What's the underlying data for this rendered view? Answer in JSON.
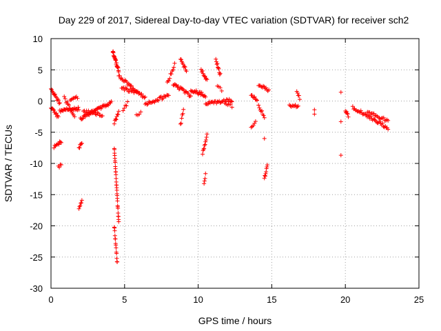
{
  "chart_data": {
    "type": "scatter",
    "title": "Day 229 of 2017, Sidereal Day-to-day VTEC variation (SDTVAR) for receiver sch2",
    "xlabel": "GPS time / hours",
    "ylabel": "SDTVAR / TECUs",
    "xlim": [
      0,
      25
    ],
    "ylim": [
      -30,
      10
    ],
    "xticks": [
      0,
      5,
      10,
      15,
      20,
      25
    ],
    "yticks": [
      -30,
      -25,
      -20,
      -15,
      -10,
      -5,
      0,
      5,
      10
    ],
    "grid": true,
    "marker": "+",
    "color": "#ff0000",
    "series": [
      {
        "name": "SDTVAR",
        "segments": [
          {
            "x0": 0.0,
            "x1": 0.6,
            "y0": 2.2,
            "y1": -0.5,
            "n": 14
          },
          {
            "x0": 0.0,
            "x1": 0.5,
            "y0": -1.0,
            "y1": -2.6,
            "n": 12
          },
          {
            "x0": 0.2,
            "x1": 0.7,
            "y0": -7.3,
            "y1": -6.5,
            "n": 10
          },
          {
            "x0": 0.5,
            "x1": 0.7,
            "y0": -10.6,
            "y1": -10.3,
            "n": 4
          },
          {
            "x0": 0.6,
            "x1": 1.9,
            "y0": -1.5,
            "y1": -1.2,
            "n": 26
          },
          {
            "x0": 0.9,
            "x1": 1.6,
            "y0": 0.5,
            "y1": -2.5,
            "n": 12
          },
          {
            "x0": 1.3,
            "x1": 1.8,
            "y0": 0.2,
            "y1": 0.6,
            "n": 8
          },
          {
            "x0": 1.9,
            "x1": 2.1,
            "y0": -7.5,
            "y1": -6.6,
            "n": 6
          },
          {
            "x0": 1.9,
            "x1": 2.1,
            "y0": -17.2,
            "y1": -16.0,
            "n": 6
          },
          {
            "x0": 2.0,
            "x1": 4.1,
            "y0": -2.8,
            "y1": -0.2,
            "n": 40
          },
          {
            "x0": 2.2,
            "x1": 3.5,
            "y0": -1.6,
            "y1": -2.2,
            "n": 20
          },
          {
            "x0": 4.2,
            "x1": 4.6,
            "y0": 7.9,
            "y1": 4.8,
            "n": 22
          },
          {
            "x0": 4.3,
            "x1": 4.6,
            "y0": -7.4,
            "y1": -19.5,
            "n": 30
          },
          {
            "x0": 4.3,
            "x1": 4.5,
            "y0": -20.0,
            "y1": -26.0,
            "n": 14
          },
          {
            "x0": 4.3,
            "x1": 4.6,
            "y0": -3.6,
            "y1": -1.8,
            "n": 8
          },
          {
            "x0": 4.6,
            "x1": 6.4,
            "y0": 4.0,
            "y1": 0.5,
            "n": 30
          },
          {
            "x0": 4.8,
            "x1": 5.9,
            "y0": 2.0,
            "y1": 1.4,
            "n": 18
          },
          {
            "x0": 4.9,
            "x1": 5.2,
            "y0": -1.5,
            "y1": -0.3,
            "n": 5
          },
          {
            "x0": 5.8,
            "x1": 6.1,
            "y0": -2.3,
            "y1": -1.8,
            "n": 4
          },
          {
            "x0": 6.4,
            "x1": 8.0,
            "y0": -0.5,
            "y1": 0.9,
            "n": 26
          },
          {
            "x0": 7.9,
            "x1": 8.4,
            "y0": 2.8,
            "y1": 5.8,
            "n": 10
          },
          {
            "x0": 8.3,
            "x1": 9.5,
            "y0": 2.8,
            "y1": 0.8,
            "n": 22
          },
          {
            "x0": 8.8,
            "x1": 9.2,
            "y0": 6.8,
            "y1": 4.8,
            "n": 10
          },
          {
            "x0": 8.8,
            "x1": 9.0,
            "y0": -3.8,
            "y1": -1.5,
            "n": 6
          },
          {
            "x0": 9.5,
            "x1": 10.5,
            "y0": 1.8,
            "y1": 0.9,
            "n": 20
          },
          {
            "x0": 10.2,
            "x1": 10.6,
            "y0": 5.0,
            "y1": 3.2,
            "n": 10
          },
          {
            "x0": 10.3,
            "x1": 10.6,
            "y0": -8.5,
            "y1": -5.5,
            "n": 10
          },
          {
            "x0": 10.4,
            "x1": 10.5,
            "y0": -13.2,
            "y1": -11.8,
            "n": 4
          },
          {
            "x0": 10.5,
            "x1": 12.3,
            "y0": -0.3,
            "y1": 0.1,
            "n": 30
          },
          {
            "x0": 11.2,
            "x1": 11.5,
            "y0": 6.6,
            "y1": 4.2,
            "n": 10
          },
          {
            "x0": 11.3,
            "x1": 11.6,
            "y0": 2.6,
            "y1": 1.8,
            "n": 4
          },
          {
            "x0": 11.8,
            "x1": 12.3,
            "y0": -0.5,
            "y1": -0.8,
            "n": 6
          },
          {
            "x0": 13.6,
            "x1": 14.0,
            "y0": 1.0,
            "y1": 0.3,
            "n": 8
          },
          {
            "x0": 13.6,
            "x1": 13.9,
            "y0": -4.2,
            "y1": -3.5,
            "n": 5
          },
          {
            "x0": 14.1,
            "x1": 14.8,
            "y0": 2.7,
            "y1": 1.6,
            "n": 12
          },
          {
            "x0": 14.1,
            "x1": 14.5,
            "y0": -0.8,
            "y1": -2.5,
            "n": 8
          },
          {
            "x0": 14.5,
            "x1": 14.5,
            "y0": -6.0,
            "y1": -6.0,
            "n": 1
          },
          {
            "x0": 14.5,
            "x1": 14.7,
            "y0": -12.4,
            "y1": -10.4,
            "n": 8
          },
          {
            "x0": 16.2,
            "x1": 16.8,
            "y0": -0.6,
            "y1": -1.0,
            "n": 10
          },
          {
            "x0": 16.7,
            "x1": 16.9,
            "y0": 1.5,
            "y1": 0.4,
            "n": 5
          },
          {
            "x0": 17.9,
            "x1": 17.9,
            "y0": -1.3,
            "y1": -1.9,
            "n": 2
          },
          {
            "x0": 19.7,
            "x1": 19.7,
            "y0": 1.2,
            "y1": 1.2,
            "n": 1
          },
          {
            "x0": 19.7,
            "x1": 19.7,
            "y0": -3.2,
            "y1": -3.2,
            "n": 1
          },
          {
            "x0": 19.7,
            "x1": 19.7,
            "y0": -8.8,
            "y1": -8.8,
            "n": 1
          },
          {
            "x0": 20.0,
            "x1": 20.2,
            "y0": -1.5,
            "y1": -2.5,
            "n": 6
          },
          {
            "x0": 20.5,
            "x1": 22.9,
            "y0": -1.0,
            "y1": -4.3,
            "n": 40
          },
          {
            "x0": 21.5,
            "x1": 22.9,
            "y0": -1.8,
            "y1": -3.2,
            "n": 20
          }
        ]
      }
    ]
  }
}
